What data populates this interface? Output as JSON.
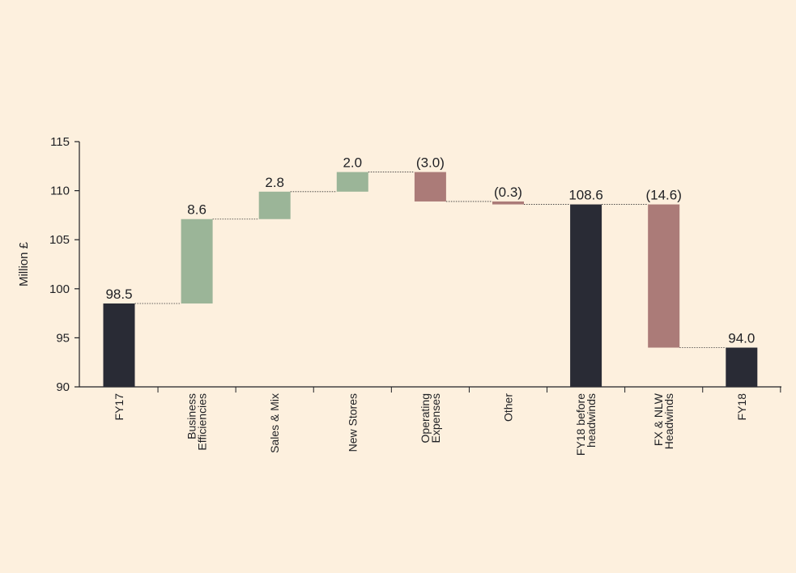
{
  "chart_data": {
    "type": "bar",
    "subtype": "waterfall",
    "title": "",
    "xlabel": "",
    "ylabel": "Million £",
    "ylim": [
      90,
      115
    ],
    "yticks": [
      90,
      95,
      100,
      105,
      110,
      115
    ],
    "grid": false,
    "legend": "none",
    "categories": [
      [
        "FY17"
      ],
      [
        "Business",
        "Efficiencies"
      ],
      [
        "Sales & Mix"
      ],
      [
        "New Stores"
      ],
      [
        "Operating",
        "Expenses"
      ],
      [
        "Other"
      ],
      [
        "FY18 before",
        "headwinds"
      ],
      [
        "FX & NLW",
        "Headwinds"
      ],
      [
        "FY18"
      ]
    ],
    "bars": [
      {
        "kind": "total",
        "start": 90,
        "end": 98.5,
        "label": "98.5"
      },
      {
        "kind": "increase",
        "start": 98.5,
        "end": 107.1,
        "label": "8.6"
      },
      {
        "kind": "increase",
        "start": 107.1,
        "end": 109.9,
        "label": "2.8"
      },
      {
        "kind": "increase",
        "start": 109.9,
        "end": 111.9,
        "label": "2.0"
      },
      {
        "kind": "decrease",
        "start": 111.9,
        "end": 108.9,
        "label": "(3.0)"
      },
      {
        "kind": "decrease",
        "start": 108.9,
        "end": 108.6,
        "label": "(0.3)"
      },
      {
        "kind": "total",
        "start": 90,
        "end": 108.6,
        "label": "108.6"
      },
      {
        "kind": "decrease",
        "start": 108.6,
        "end": 94.0,
        "label": "(14.6)"
      },
      {
        "kind": "total",
        "start": 90,
        "end": 94.0,
        "label": "94.0"
      }
    ],
    "colors": {
      "total": "#292b35",
      "increase": "#9bb598",
      "decrease": "#ab7b78",
      "axis": "#1f2024",
      "connector": "#333333",
      "background": "#fdf0de"
    }
  }
}
